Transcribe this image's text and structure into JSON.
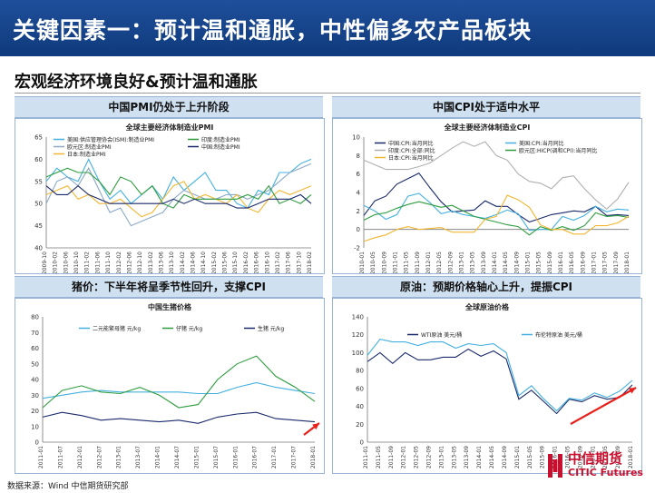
{
  "header": {
    "title": "关键因素一：预计温和通胀，中性偏多农产品板块"
  },
  "section": {
    "subtitle": "宏观经济环境良好&预计温和通胀"
  },
  "panels": {
    "pmi": {
      "label": "中国PMI仍处于上升阶段"
    },
    "cpi": {
      "label": "中国CPI处于适中水平"
    },
    "hog": {
      "label": "猪价：下半年将呈季节性回升，支撑CPI"
    },
    "oil": {
      "label": "原油：预期价格轴心上升，提振CPI"
    }
  },
  "footer": {
    "source": "数据来源：Wind  中信期货研究部"
  },
  "logo": {
    "cn": "中信期货",
    "en": "CITIC Futures"
  },
  "colors": {
    "accent": "#1f4f9a",
    "panel_bar": "#cfe0f1",
    "arrow": "#e8201a",
    "logo": "#c8102e"
  },
  "chart_data": [
    {
      "type": "line",
      "title": "全球主要经济体制造业PMI",
      "ylim": [
        40,
        65
      ],
      "yticks": [
        40,
        45,
        50,
        55,
        60,
        65
      ],
      "x": [
        "2009-10",
        "2010-02",
        "2010-06",
        "2010-10",
        "2011-02",
        "2011-06",
        "2011-10",
        "2012-02",
        "2012-06",
        "2012-10",
        "2013-02",
        "2013-06",
        "2013-10",
        "2014-02",
        "2014-06",
        "2014-10",
        "2015-02",
        "2015-06",
        "2015-10",
        "2016-02",
        "2016-06",
        "2016-10",
        "2017-02",
        "2017-06",
        "2017-10",
        "2018-02"
      ],
      "legend": {
        "placement": "top-left"
      },
      "series": [
        {
          "name": "美国:供应管理协会(ISM):制造业PMI",
          "color": "#44b0e0",
          "values": [
            55,
            58,
            56,
            55,
            60,
            55,
            51,
            53,
            50,
            52,
            54,
            51,
            56,
            53,
            55,
            57,
            53,
            53,
            50,
            49,
            53,
            52,
            57,
            57,
            59,
            60
          ]
        },
        {
          "name": "欧元区:制造业PMI",
          "color": "#8ca9c8",
          "values": [
            50,
            55,
            56,
            54,
            58,
            53,
            48,
            49,
            45,
            46,
            47,
            48,
            51,
            53,
            52,
            51,
            51,
            52,
            52,
            51,
            52,
            53,
            55,
            57,
            58,
            59
          ]
        },
        {
          "name": "日本:制造业PMI",
          "color": "#f2b632",
          "values": [
            52,
            53,
            54,
            51,
            52,
            50,
            50,
            51,
            49,
            47,
            48,
            51,
            54,
            55,
            51,
            52,
            51,
            50,
            52,
            49,
            48,
            51,
            53,
            52,
            53,
            54
          ]
        },
        {
          "name": "印度:制造业PMI",
          "color": "#2e9d3e",
          "values": [
            56,
            57,
            58,
            57,
            57,
            55,
            52,
            56,
            55,
            52,
            54,
            50,
            49,
            52,
            51,
            51,
            51,
            51,
            51,
            52,
            51,
            54,
            50,
            51,
            50,
            52
          ]
        },
        {
          "name": "中国:制造业PMI",
          "color": "#1a2a6c",
          "values": [
            54,
            52,
            52,
            54,
            52,
            51,
            50,
            50,
            50,
            50,
            50,
            50,
            51,
            50,
            51,
            50,
            50,
            50,
            49,
            49,
            50,
            51,
            51,
            51,
            52,
            50
          ]
        }
      ]
    },
    {
      "type": "line",
      "title": "全球主要经济体制造业CPI",
      "ylim": [
        -2,
        10
      ],
      "yticks": [
        -2,
        0,
        2,
        4,
        6,
        8,
        10
      ],
      "x": [
        "2010-01",
        "2010-05",
        "2010-09",
        "2011-01",
        "2011-05",
        "2011-09",
        "2012-01",
        "2012-05",
        "2012-09",
        "2013-01",
        "2013-05",
        "2013-09",
        "2014-01",
        "2014-05",
        "2014-09",
        "2015-01",
        "2015-05",
        "2015-09",
        "2016-01",
        "2016-05",
        "2016-09",
        "2017-01",
        "2017-05",
        "2017-09",
        "2018-01"
      ],
      "legend": {
        "placement": "top"
      },
      "series": [
        {
          "name": "中国:CPI:当月同比",
          "color": "#1a2a6c",
          "values": [
            1.5,
            3.1,
            3.6,
            4.9,
            5.5,
            6.1,
            4.5,
            3.0,
            1.9,
            2.0,
            2.1,
            3.1,
            2.5,
            2.5,
            1.6,
            0.8,
            1.2,
            1.6,
            1.8,
            2.0,
            1.9,
            2.5,
            1.5,
            1.6,
            1.5
          ]
        },
        {
          "name": "美国:CPI:当月同比",
          "color": "#44b0e0",
          "values": [
            2.6,
            2.0,
            1.1,
            1.6,
            3.6,
            3.9,
            2.9,
            1.7,
            2.0,
            1.6,
            1.4,
            1.2,
            1.6,
            2.1,
            1.7,
            -0.1,
            0.0,
            0.0,
            1.4,
            1.0,
            1.5,
            2.5,
            1.9,
            2.2,
            2.1
          ]
        },
        {
          "name": "欧元区:HICP(调和CPI):当月同比",
          "color": "#2e9d3e",
          "values": [
            1.0,
            1.6,
            1.8,
            2.3,
            2.7,
            3.0,
            2.7,
            2.4,
            2.6,
            2.0,
            1.4,
            1.1,
            0.8,
            0.5,
            0.3,
            -0.6,
            0.3,
            -0.1,
            0.3,
            -0.1,
            0.4,
            1.8,
            1.4,
            1.5,
            1.3
          ]
        },
        {
          "name": "日本:CPI:当月同比",
          "color": "#f2b632",
          "values": [
            -1.3,
            -0.9,
            -0.6,
            0.0,
            0.3,
            0.0,
            0.1,
            0.2,
            -0.3,
            -0.3,
            -0.3,
            1.1,
            1.4,
            3.7,
            3.2,
            2.4,
            0.5,
            0.0,
            0.0,
            -0.5,
            -0.5,
            0.4,
            0.4,
            0.7,
            1.4
          ]
        },
        {
          "name": "印度:CPI:全部:同比",
          "color": "#b0b0b0",
          "values": [
            7.5,
            7.0,
            6.5,
            6.5,
            6.5,
            6.8,
            7.2,
            8.0,
            8.8,
            9.5,
            9.0,
            9.5,
            8.0,
            7.5,
            6.0,
            5.2,
            5.0,
            4.4,
            5.6,
            5.8,
            4.4,
            3.2,
            2.2,
            3.3,
            5.1
          ]
        }
      ]
    },
    {
      "type": "line",
      "title": "中国生猪价格",
      "ylim": [
        0,
        80
      ],
      "yticks": [
        0,
        10,
        20,
        30,
        40,
        50,
        60,
        70,
        80
      ],
      "x": [
        "2011-01",
        "2011-07",
        "2012-01",
        "2012-07",
        "2013-01",
        "2013-07",
        "2014-01",
        "2014-07",
        "2015-01",
        "2015-07",
        "2016-01",
        "2016-07",
        "2017-01",
        "2017-07",
        "2018-01"
      ],
      "legend": {
        "placement": "top"
      },
      "series": [
        {
          "name": "二元能繁母猪 元/kg",
          "color": "#44b0e0",
          "values": [
            28,
            30,
            32,
            33,
            32,
            32,
            32,
            32,
            31,
            31,
            35,
            38,
            35,
            33,
            31
          ]
        },
        {
          "name": "仔猪 元/kg",
          "color": "#2e9d3e",
          "values": [
            22,
            33,
            36,
            32,
            31,
            35,
            30,
            22,
            24,
            40,
            50,
            55,
            42,
            35,
            26
          ]
        },
        {
          "name": "生猪 元/kg",
          "color": "#1a2a6c",
          "values": [
            16,
            19,
            17,
            14,
            15,
            14,
            13,
            14,
            12,
            16,
            18,
            19,
            15,
            14,
            13
          ]
        }
      ]
    },
    {
      "type": "line",
      "title": "全球原油价格",
      "ylim": [
        0,
        140
      ],
      "yticks": [
        0,
        20,
        40,
        60,
        80,
        100,
        120,
        140
      ],
      "x": [
        "2011-01",
        "2011-05",
        "2011-09",
        "2012-01",
        "2012-05",
        "2012-09",
        "2013-01",
        "2013-05",
        "2013-09",
        "2014-01",
        "2014-05",
        "2014-09",
        "2015-01",
        "2015-05",
        "2015-09",
        "2016-01",
        "2016-05",
        "2016-09",
        "2017-01",
        "2017-05",
        "2017-09",
        "2018-01"
      ],
      "legend": {
        "placement": "top"
      },
      "series": [
        {
          "name": "WTI原油 美元/桶",
          "color": "#1a2a6c",
          "values": [
            90,
            100,
            88,
            100,
            92,
            92,
            95,
            95,
            104,
            96,
            102,
            93,
            48,
            58,
            45,
            32,
            48,
            45,
            52,
            48,
            50,
            64
          ]
        },
        {
          "name": "布伦特原油 美元/桶",
          "color": "#44b0e0",
          "values": [
            97,
            115,
            112,
            112,
            108,
            112,
            112,
            105,
            110,
            108,
            110,
            100,
            52,
            63,
            48,
            35,
            49,
            47,
            55,
            50,
            57,
            69
          ]
        }
      ]
    }
  ]
}
